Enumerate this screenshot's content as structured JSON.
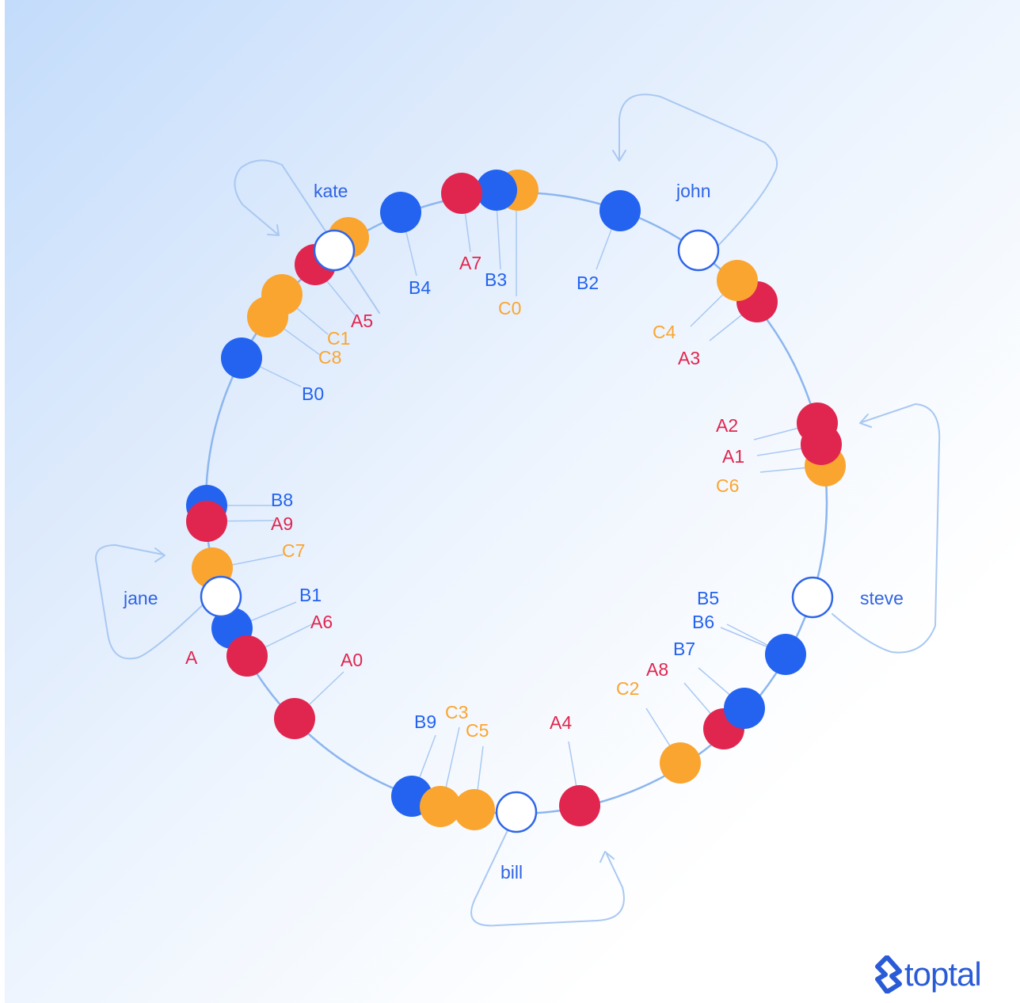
{
  "colors": {
    "ring": "#8cb6ee",
    "arrow": "#a9c8f2",
    "series_a": "#e0264f",
    "series_b": "#2363f0",
    "series_c": "#faa52f",
    "server_stroke": "#2f66e8",
    "server_fill": "#ffffff",
    "server_label": "#2f64e4",
    "logo": "#2a5bd7"
  },
  "servers": [
    {
      "label": "kate"
    },
    {
      "label": "john"
    },
    {
      "label": "steve"
    },
    {
      "label": "bill"
    },
    {
      "label": "jane"
    }
  ],
  "nodes": [
    {
      "label": "A0",
      "group": "a"
    },
    {
      "label": "A1",
      "group": "a"
    },
    {
      "label": "A2",
      "group": "a"
    },
    {
      "label": "A3",
      "group": "a"
    },
    {
      "label": "A4",
      "group": "a"
    },
    {
      "label": "A5",
      "group": "a"
    },
    {
      "label": "A6",
      "group": "a"
    },
    {
      "label": "A7",
      "group": "a"
    },
    {
      "label": "A8",
      "group": "a"
    },
    {
      "label": "A9",
      "group": "a"
    },
    {
      "label": "A",
      "group": "a"
    },
    {
      "label": "B0",
      "group": "b"
    },
    {
      "label": "B1",
      "group": "b"
    },
    {
      "label": "B2",
      "group": "b"
    },
    {
      "label": "B3",
      "group": "b"
    },
    {
      "label": "B4",
      "group": "b"
    },
    {
      "label": "B5",
      "group": "b"
    },
    {
      "label": "B6",
      "group": "b"
    },
    {
      "label": "B7",
      "group": "b"
    },
    {
      "label": "B8",
      "group": "b"
    },
    {
      "label": "B9",
      "group": "b"
    },
    {
      "label": "C0",
      "group": "c"
    },
    {
      "label": "C1",
      "group": "c"
    },
    {
      "label": "C2",
      "group": "c"
    },
    {
      "label": "C3",
      "group": "c"
    },
    {
      "label": "C4",
      "group": "c"
    },
    {
      "label": "C5",
      "group": "c"
    },
    {
      "label": "C6",
      "group": "c"
    },
    {
      "label": "C7",
      "group": "c"
    },
    {
      "label": "C8",
      "group": "c"
    }
  ],
  "logo": {
    "text": "toptal"
  }
}
